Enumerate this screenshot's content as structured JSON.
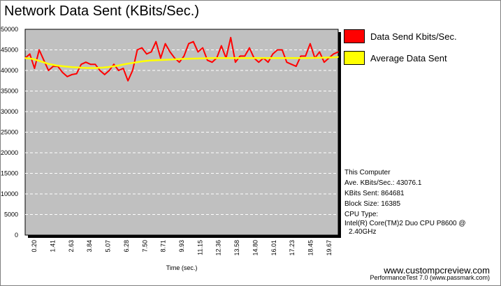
{
  "chart_data": {
    "type": "line",
    "title": "Network Data Sent (KBits/Sec.)",
    "xlabel": "Time (sec.)",
    "ylabel": "",
    "ylim": [
      0,
      50000
    ],
    "yticks": [
      "0",
      "5000",
      "10000",
      "15000",
      "20000",
      "25000",
      "30000",
      "35000",
      "40000",
      "45000",
      "50000"
    ],
    "xlim": [
      0,
      20.1
    ],
    "xticks": [
      "0.20",
      "1.41",
      "2.63",
      "3.84",
      "5.07",
      "6.28",
      "7.50",
      "8.71",
      "9.93",
      "11.15",
      "12.36",
      "13.58",
      "14.80",
      "16.01",
      "17.23",
      "18.45",
      "19.67"
    ],
    "grid": true,
    "legend_position": "right",
    "series": [
      {
        "name": "Data Send Kbits/Sec.",
        "color": "#ff0000",
        "x": [
          0.0,
          0.3,
          0.6,
          0.9,
          1.2,
          1.5,
          1.8,
          2.1,
          2.4,
          2.7,
          3.0,
          3.3,
          3.6,
          3.9,
          4.2,
          4.5,
          4.8,
          5.1,
          5.4,
          5.7,
          6.0,
          6.3,
          6.6,
          6.9,
          7.2,
          7.5,
          7.8,
          8.1,
          8.4,
          8.7,
          9.0,
          9.3,
          9.6,
          9.9,
          10.2,
          10.5,
          10.8,
          11.1,
          11.4,
          11.7,
          12.0,
          12.3,
          12.6,
          12.9,
          13.2,
          13.5,
          13.8,
          14.1,
          14.4,
          14.7,
          15.0,
          15.3,
          15.6,
          15.9,
          16.2,
          16.5,
          16.8,
          17.1,
          17.4,
          17.7,
          18.0,
          18.3,
          18.6,
          18.9,
          19.2,
          19.5,
          19.8,
          20.1
        ],
        "values": [
          43000,
          44000,
          40500,
          45000,
          42500,
          40000,
          41000,
          41000,
          39500,
          38500,
          39000,
          39200,
          41500,
          42000,
          41500,
          41500,
          40000,
          39000,
          40000,
          41500,
          40000,
          40500,
          37500,
          40000,
          45000,
          45500,
          44000,
          44500,
          47000,
          43000,
          46500,
          44500,
          43000,
          42000,
          43500,
          46500,
          47000,
          44500,
          45500,
          42500,
          42000,
          43000,
          46000,
          43000,
          48000,
          42000,
          43500,
          43500,
          45500,
          43000,
          42000,
          43000,
          42000,
          44000,
          45000,
          45000,
          42000,
          41500,
          41000,
          43500,
          43500,
          46500,
          43000,
          44500,
          42000,
          43000,
          44000,
          44500
        ]
      },
      {
        "name": "Average Data Sent",
        "color": "#ffff00",
        "x": [
          0.0,
          0.5,
          1.0,
          1.5,
          2.0,
          2.5,
          3.0,
          3.5,
          4.0,
          4.5,
          5.0,
          5.5,
          6.0,
          6.5,
          7.0,
          7.5,
          8.0,
          9.0,
          10.0,
          11.0,
          12.0,
          13.0,
          14.0,
          15.0,
          16.0,
          17.0,
          18.0,
          19.0,
          20.0,
          20.1
        ],
        "values": [
          43000,
          42800,
          42200,
          41600,
          41200,
          41000,
          40800,
          40700,
          40600,
          40600,
          40700,
          40900,
          41200,
          41600,
          41900,
          42200,
          42400,
          42600,
          42800,
          42900,
          43000,
          43000,
          43000,
          43000,
          43000,
          43000,
          43000,
          43100,
          43200,
          43300
        ]
      }
    ]
  },
  "info": {
    "heading": "This Computer",
    "ave": "Ave. KBits/Sec.: 43076.1",
    "sent": "KBits Sent: 864681",
    "block": "Block Size: 16385",
    "cpu_label": "CPU Type:",
    "cpu_line1": "Intel(R) Core(TM)2 Duo CPU P8600 @",
    "cpu_line2": "2.40GHz"
  },
  "footer": {
    "site": "www.custompcreview.com",
    "product": "PerformanceTest 7.0 (www.passmark.com)"
  },
  "colors": {
    "plot_bg": "#c0c0c0",
    "grid": "#ffffff"
  }
}
